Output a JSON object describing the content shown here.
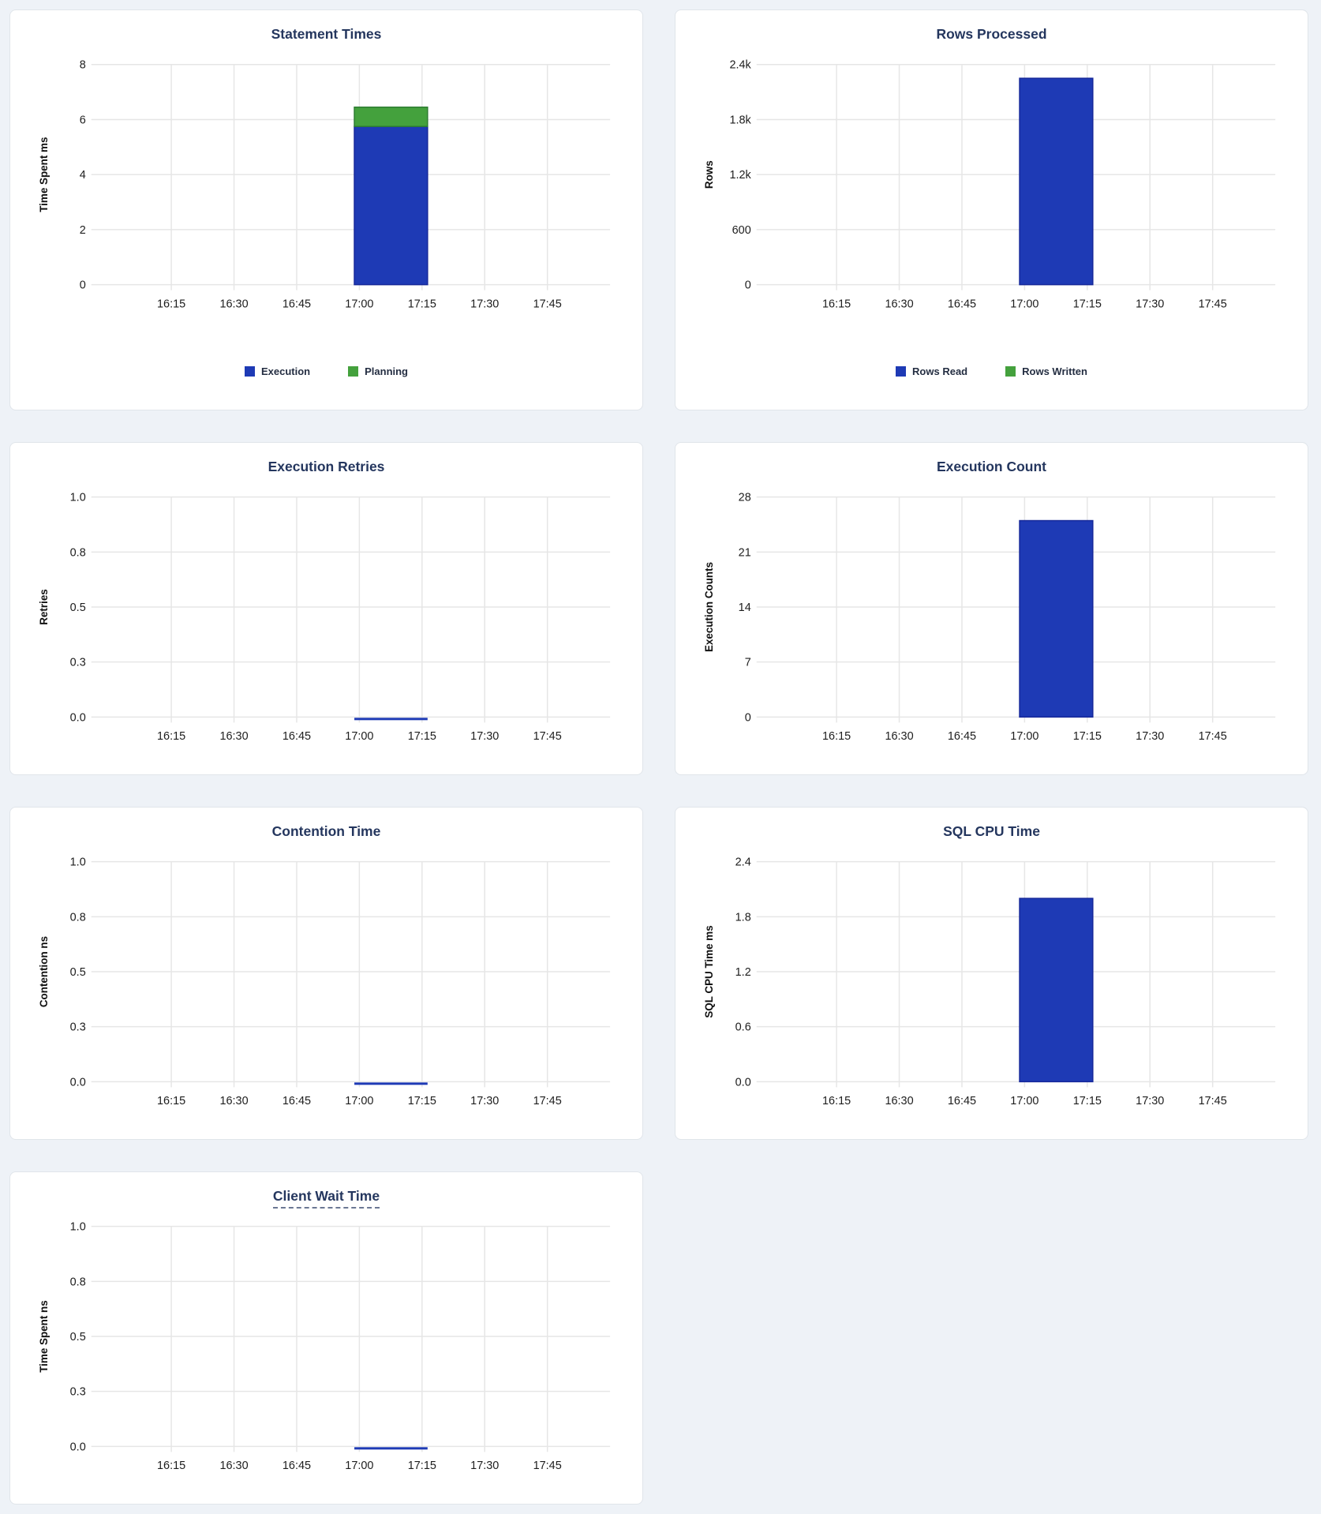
{
  "page": {
    "background": "#eef2f7",
    "panel_background": "#ffffff",
    "panel_border": "#e0e5ea",
    "title_color": "#24365e",
    "gridline_color": "#e6e6e6",
    "tick_label_color": "#1e1e1e",
    "axis_title_color": "#111111",
    "legend_text_color": "#242e42",
    "accent_blue": "#1e3ab5",
    "accent_green": "#44a13d"
  },
  "chart_data": [
    {
      "type": "bar",
      "title": "Statement Times",
      "ylabel": "Time Spent ms",
      "ylim": [
        0,
        8
      ],
      "yticks": [
        "0",
        "2",
        "4",
        "6",
        "8"
      ],
      "xticks": [
        "16:15",
        "16:30",
        "16:45",
        "17:00",
        "17:15",
        "17:30",
        "17:45"
      ],
      "x_window": {
        "start": "16:00",
        "end": "18:00"
      },
      "bar_interval": {
        "start": "17:00",
        "end": "17:15"
      },
      "grid": true,
      "legend_position": "bottom",
      "series": [
        {
          "name": "Execution",
          "value": 5.75,
          "color": "#1e3ab5",
          "stroke": "#16289a"
        },
        {
          "name": "Planning",
          "value": 0.7,
          "color": "#44a13d",
          "stroke": "#2e7d32"
        }
      ],
      "legend": [
        {
          "label": "Execution",
          "color": "#1e3ab5"
        },
        {
          "label": "Planning",
          "color": "#44a13d"
        }
      ]
    },
    {
      "type": "bar",
      "title": "Rows Processed",
      "ylabel": "Rows",
      "ylim": [
        0,
        2400
      ],
      "yticks": [
        "0",
        "600",
        "1.2k",
        "1.8k",
        "2.4k"
      ],
      "xticks": [
        "16:15",
        "16:30",
        "16:45",
        "17:00",
        "17:15",
        "17:30",
        "17:45"
      ],
      "x_window": {
        "start": "16:00",
        "end": "18:00"
      },
      "bar_interval": {
        "start": "17:00",
        "end": "17:15"
      },
      "grid": true,
      "legend_position": "bottom",
      "series": [
        {
          "name": "Rows Read",
          "value": 2250,
          "color": "#1e3ab5",
          "stroke": "#16289a"
        },
        {
          "name": "Rows Written",
          "value": 0,
          "color": "#44a13d",
          "stroke": "#2e7d32"
        }
      ],
      "legend": [
        {
          "label": "Rows Read",
          "color": "#1e3ab5"
        },
        {
          "label": "Rows Written",
          "color": "#44a13d"
        }
      ]
    },
    {
      "type": "bar",
      "title": "Execution Retries",
      "ylabel": "Retries",
      "ylim": [
        0,
        1
      ],
      "yticks": [
        "0.0",
        "0.3",
        "0.5",
        "0.8",
        "1.0"
      ],
      "xticks": [
        "16:15",
        "16:30",
        "16:45",
        "17:00",
        "17:15",
        "17:30",
        "17:45"
      ],
      "x_window": {
        "start": "16:00",
        "end": "18:00"
      },
      "bar_interval": {
        "start": "17:00",
        "end": "17:15"
      },
      "grid": true,
      "series": [
        {
          "name": "",
          "value": 0,
          "color": "#1e3ab5",
          "stroke": "#16289a"
        }
      ],
      "legend": null
    },
    {
      "type": "bar",
      "title": "Execution Count",
      "ylabel": "Execution Counts",
      "ylim": [
        0,
        28
      ],
      "yticks": [
        "0",
        "7",
        "14",
        "21",
        "28"
      ],
      "xticks": [
        "16:15",
        "16:30",
        "16:45",
        "17:00",
        "17:15",
        "17:30",
        "17:45"
      ],
      "x_window": {
        "start": "16:00",
        "end": "18:00"
      },
      "bar_interval": {
        "start": "17:00",
        "end": "17:15"
      },
      "grid": true,
      "series": [
        {
          "name": "",
          "value": 25,
          "color": "#1e3ab5",
          "stroke": "#16289a"
        }
      ],
      "legend": null
    },
    {
      "type": "bar",
      "title": "Contention Time",
      "ylabel": "Contention ns",
      "ylim": [
        0,
        1
      ],
      "yticks": [
        "0.0",
        "0.3",
        "0.5",
        "0.8",
        "1.0"
      ],
      "xticks": [
        "16:15",
        "16:30",
        "16:45",
        "17:00",
        "17:15",
        "17:30",
        "17:45"
      ],
      "x_window": {
        "start": "16:00",
        "end": "18:00"
      },
      "bar_interval": {
        "start": "17:00",
        "end": "17:15"
      },
      "grid": true,
      "series": [
        {
          "name": "",
          "value": 0,
          "color": "#1e3ab5",
          "stroke": "#16289a"
        }
      ],
      "legend": null
    },
    {
      "type": "bar",
      "title": "SQL CPU Time",
      "ylabel": "SQL CPU Time ms",
      "ylim": [
        0,
        2.4
      ],
      "yticks": [
        "0.0",
        "0.6",
        "1.2",
        "1.8",
        "2.4"
      ],
      "xticks": [
        "16:15",
        "16:30",
        "16:45",
        "17:00",
        "17:15",
        "17:30",
        "17:45"
      ],
      "x_window": {
        "start": "16:00",
        "end": "18:00"
      },
      "bar_interval": {
        "start": "17:00",
        "end": "17:15"
      },
      "grid": true,
      "series": [
        {
          "name": "",
          "value": 2.0,
          "color": "#1e3ab5",
          "stroke": "#16289a"
        }
      ],
      "legend": null
    },
    {
      "type": "bar",
      "title": "Client Wait Time",
      "title_tooltip_underline": true,
      "ylabel": "Time Spent ns",
      "ylim": [
        0,
        1
      ],
      "yticks": [
        "0.0",
        "0.3",
        "0.5",
        "0.8",
        "1.0"
      ],
      "xticks": [
        "16:15",
        "16:30",
        "16:45",
        "17:00",
        "17:15",
        "17:30",
        "17:45"
      ],
      "x_window": {
        "start": "16:00",
        "end": "18:00"
      },
      "bar_interval": {
        "start": "17:00",
        "end": "17:15"
      },
      "grid": true,
      "series": [
        {
          "name": "",
          "value": 0,
          "color": "#1e3ab5",
          "stroke": "#16289a"
        }
      ],
      "legend": null
    }
  ]
}
